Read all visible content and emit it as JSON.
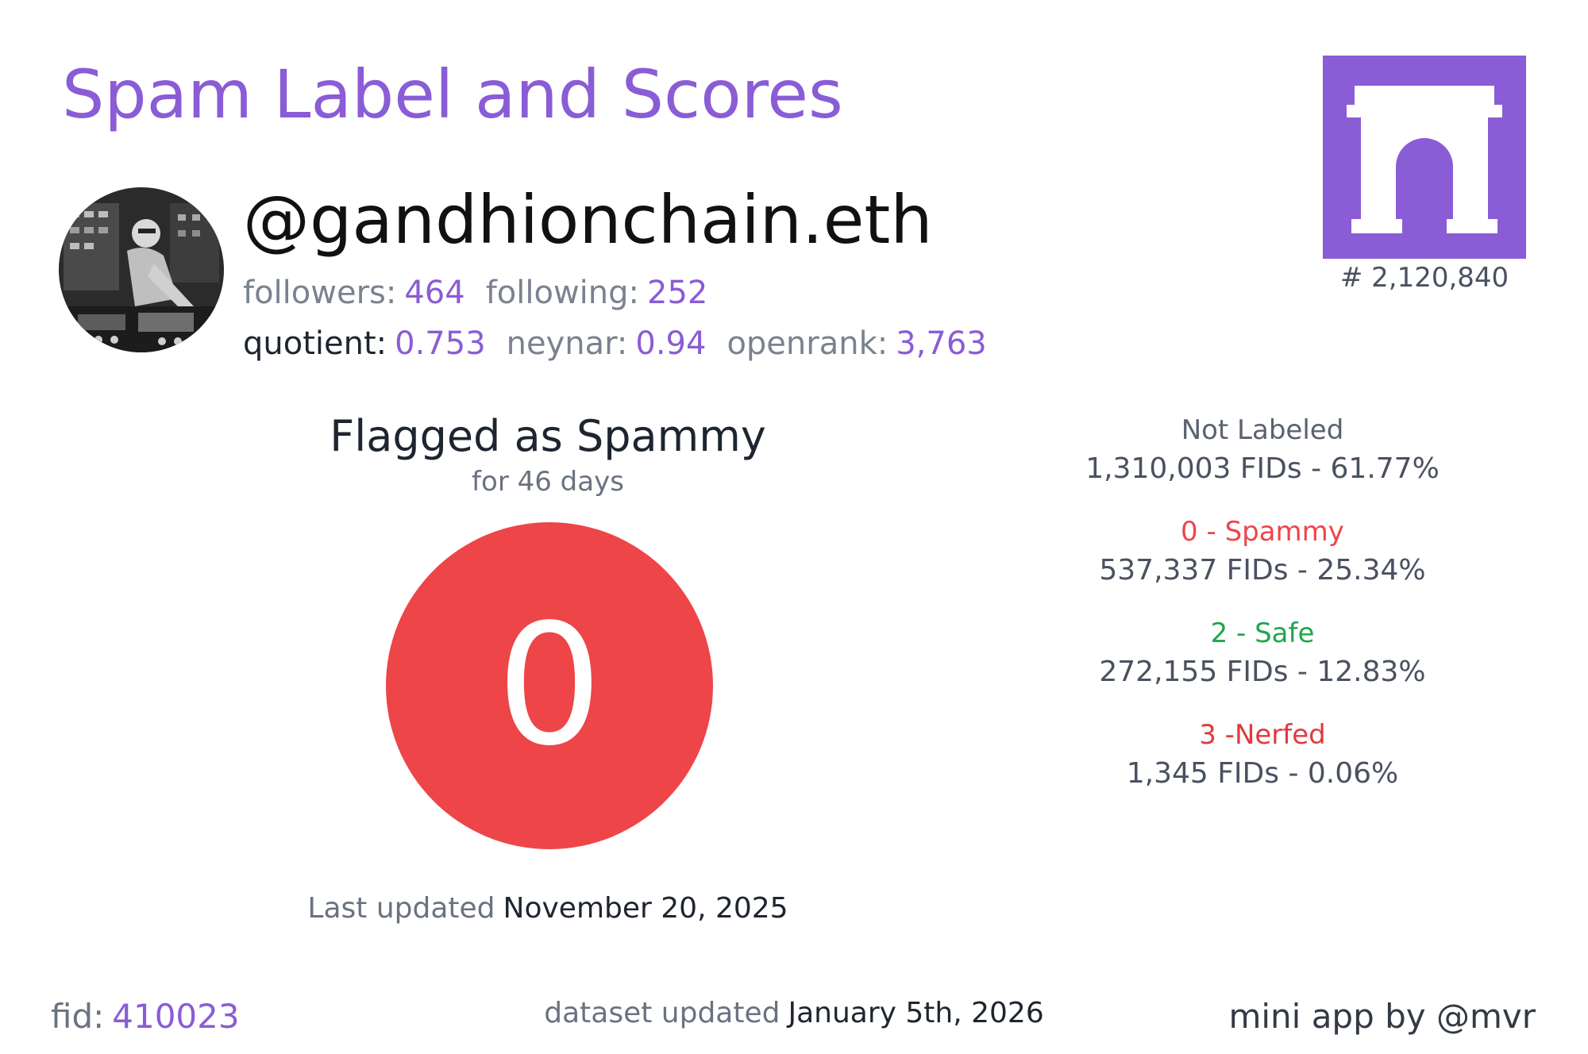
{
  "header": {
    "title": "Spam Label and Scores"
  },
  "profile": {
    "username": "@gandhionchain.eth",
    "followers_label": "followers:",
    "followers": "464",
    "following_label": "following:",
    "following": "252",
    "quotient_label": "quotient:",
    "quotient": "0.753",
    "neynar_label": "neynar:",
    "neynar": "0.94",
    "openrank_label": "openrank:",
    "openrank": "3,763",
    "rank": "# 2,120,840"
  },
  "status": {
    "title": "Flagged as Spammy",
    "duration": "for 46 days",
    "score": "0",
    "score_color": "#ee4549",
    "last_updated_label": "Last updated",
    "last_updated": "November 20, 2025"
  },
  "distribution": [
    {
      "label": "Not Labeled",
      "count": "1,310,003 FIDs - 61.77%",
      "color": "#5a6270"
    },
    {
      "label": "0 - Spammy",
      "count": "537,337 FIDs - 25.34%",
      "color": "#ee4549"
    },
    {
      "label": "2 - Safe",
      "count": "272,155 FIDs - 12.83%",
      "color": "#1fa64a"
    },
    {
      "label": "3 -Nerfed",
      "count": "1,345 FIDs - 0.06%",
      "color": "#e03a3e"
    }
  ],
  "footer": {
    "fid_label": "fid:",
    "fid": "410023",
    "dataset_label": "dataset updated",
    "dataset_date": "January 5th, 2026",
    "credit": "mini app by @mvr"
  },
  "colors": {
    "accent": "#8a5cd6"
  },
  "icons": {
    "logo": "archway-icon",
    "avatar": "user-avatar"
  }
}
